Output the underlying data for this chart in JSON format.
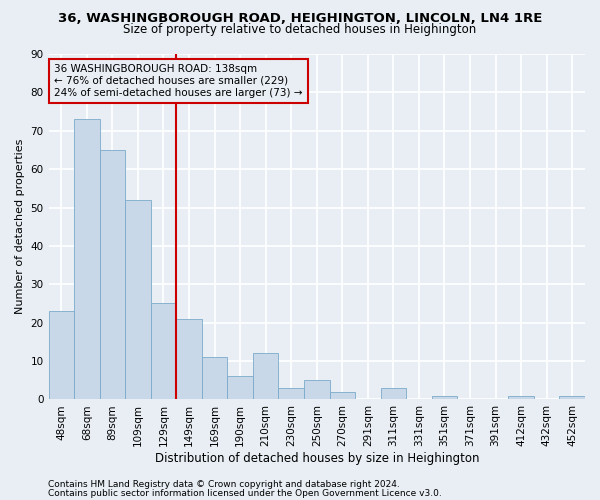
{
  "title1": "36, WASHINGBOROUGH ROAD, HEIGHINGTON, LINCOLN, LN4 1RE",
  "title2": "Size of property relative to detached houses in Heighington",
  "xlabel": "Distribution of detached houses by size in Heighington",
  "ylabel": "Number of detached properties",
  "categories": [
    "48sqm",
    "68sqm",
    "89sqm",
    "109sqm",
    "129sqm",
    "149sqm",
    "169sqm",
    "190sqm",
    "210sqm",
    "230sqm",
    "250sqm",
    "270sqm",
    "291sqm",
    "311sqm",
    "331sqm",
    "351sqm",
    "371sqm",
    "391sqm",
    "412sqm",
    "432sqm",
    "452sqm"
  ],
  "values": [
    23,
    73,
    65,
    52,
    25,
    21,
    11,
    6,
    12,
    3,
    5,
    2,
    0,
    3,
    0,
    1,
    0,
    0,
    1,
    0,
    1
  ],
  "bar_color": "#c8d8e8",
  "bar_edge_color": "#7aaaca",
  "vline_x": 4.5,
  "vline_color": "#cc0000",
  "annotation_title": "36 WASHINGBOROUGH ROAD: 138sqm",
  "annotation_line1": "← 76% of detached houses are smaller (229)",
  "annotation_line2": "24% of semi-detached houses are larger (73) →",
  "annotation_box_color": "#cc0000",
  "ylim": [
    0,
    90
  ],
  "yticks": [
    0,
    10,
    20,
    30,
    40,
    50,
    60,
    70,
    80,
    90
  ],
  "footnote1": "Contains HM Land Registry data © Crown copyright and database right 2024.",
  "footnote2": "Contains public sector information licensed under the Open Government Licence v3.0.",
  "bg_color": "#e8eef4",
  "grid_color": "#ffffff",
  "title1_fontsize": 9.5,
  "title2_fontsize": 8.5,
  "xlabel_fontsize": 8.5,
  "ylabel_fontsize": 8.0,
  "tick_fontsize": 7.5,
  "annot_fontsize": 7.5,
  "footnote_fontsize": 6.5
}
